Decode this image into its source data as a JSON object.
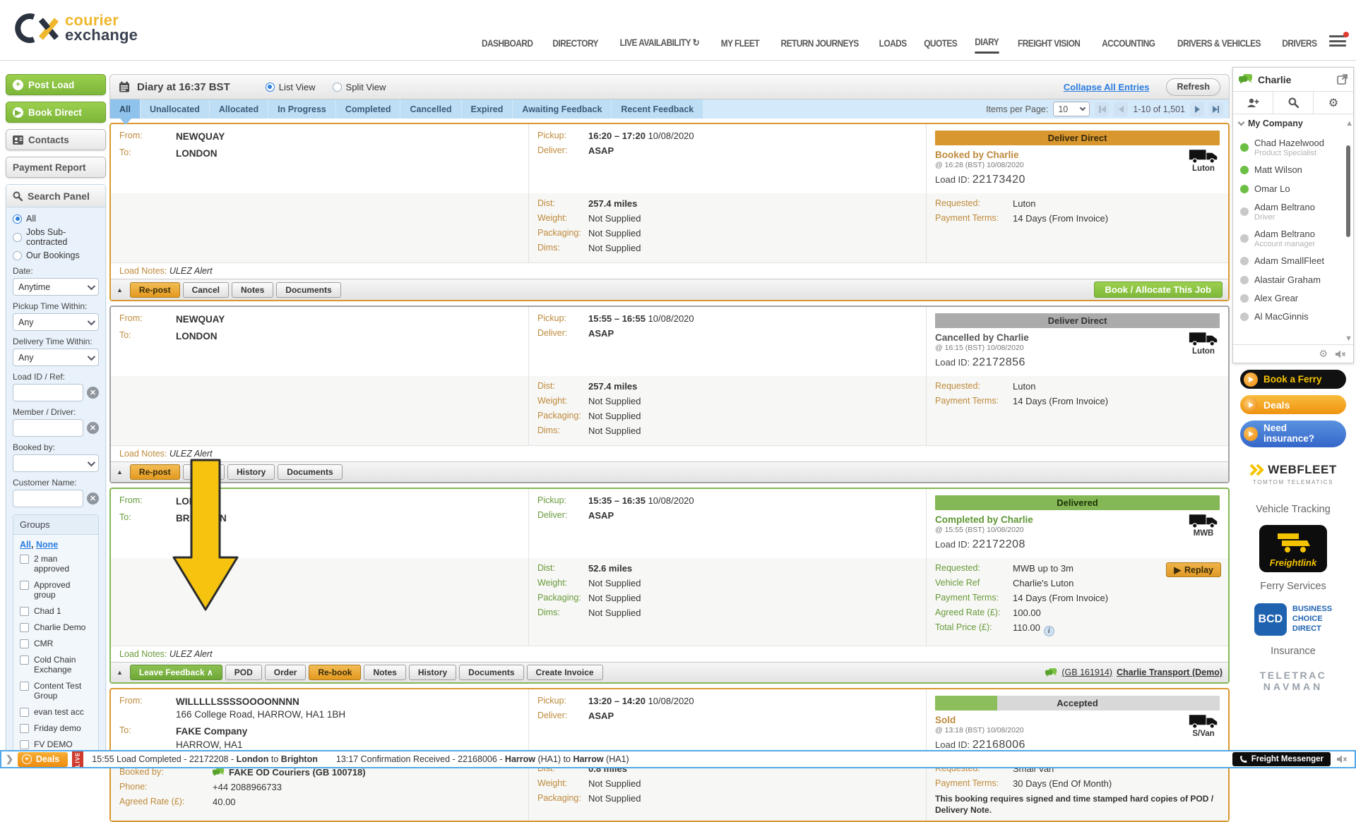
{
  "brand": {
    "courier": "courier",
    "exchange": "exchange"
  },
  "nav": {
    "items": [
      {
        "label": "DASHBOARD"
      },
      {
        "label": "DIRECTORY"
      },
      {
        "label": "LIVE AVAILABILITY",
        "refresh_icon": true
      },
      {
        "label": "MY FLEET"
      },
      {
        "label": "RETURN JOURNEYS"
      },
      {
        "label": "LOADS"
      },
      {
        "label": "QUOTES"
      },
      {
        "label": "DIARY",
        "active": true
      },
      {
        "label": "FREIGHT VISION"
      },
      {
        "label": "ACCOUNTING"
      },
      {
        "label": "DRIVERS & VEHICLES"
      },
      {
        "label": "DRIVERS"
      }
    ]
  },
  "sidebar": {
    "post_load": "Post Load",
    "book_direct": "Book Direct",
    "contacts": "Contacts",
    "payment_report": "Payment Report",
    "search": {
      "title": "Search Panel",
      "radios": [
        "All",
        "Jobs Sub-contracted",
        "Our Bookings"
      ],
      "selected_radio": "All",
      "fields": [
        {
          "label": "Date:",
          "type": "select",
          "value": "Anytime"
        },
        {
          "label": "Pickup Time Within:",
          "type": "select",
          "value": "Any"
        },
        {
          "label": "Delivery Time Within:",
          "type": "select",
          "value": "Any"
        },
        {
          "label": "Load ID / Ref:",
          "type": "text",
          "value": "",
          "clear": true
        },
        {
          "label": "Member / Driver:",
          "type": "text",
          "value": "",
          "clear": true
        },
        {
          "label": "Booked by:",
          "type": "select",
          "value": ""
        },
        {
          "label": "Customer Name:",
          "type": "text",
          "value": "",
          "clear": true
        }
      ],
      "groups": {
        "title": "Groups",
        "links": [
          "All",
          "None"
        ],
        "options": [
          "2 man approved",
          "Approved group",
          "Chad 1",
          "Charlie Demo",
          "CMR",
          "Cold Chain Exchange",
          "Content Test Group",
          "evan test acc",
          "Friday demo",
          "FV DEMO"
        ]
      }
    }
  },
  "diary": {
    "header": {
      "title": "Diary at 16:37 BST",
      "views": [
        "List View",
        "Split View"
      ],
      "selected_view": "List View",
      "collapse_link": "Collapse All Entries",
      "refresh": "Refresh"
    },
    "filters": {
      "active": "All",
      "tabs": [
        "All",
        "Unallocated",
        "Allocated",
        "In Progress",
        "Completed",
        "Cancelled",
        "Expired",
        "Awaiting Feedback",
        "Recent Feedback"
      ]
    },
    "pagination": {
      "label": "Items per Page:",
      "per_page": "10",
      "range": "1-10 of 1,501"
    },
    "labels": {
      "from": "From:",
      "to": "To:",
      "pickup": "Pickup:",
      "deliver": "Deliver:",
      "dist": "Dist:",
      "weight": "Weight:",
      "packaging": "Packaging:",
      "dims": "Dims:",
      "load_id": "Load ID:",
      "load_notes": "Load Notes:"
    },
    "cards": [
      {
        "border": "#d9982f",
        "label_color": "#be8a3c",
        "from": [
          "NEWQUAY"
        ],
        "to": [
          "LONDON"
        ],
        "pickup_time": "16:20 – 17:20",
        "pickup_date": "10/08/2020",
        "deliver": "ASAP",
        "dist": "257.4 miles",
        "weight": "Not Supplied",
        "packaging": "Not Supplied",
        "dims": "Not Supplied",
        "banner": {
          "text": "Deliver Direct",
          "bg": "#d9982f",
          "fg": "#35280a"
        },
        "status": {
          "text": "Booked by Charlie",
          "color": "#be8a3c"
        },
        "status_time": "@ 16:28 (BST) 10/08/2020",
        "load_id": "22173420",
        "vehicle": "Luton",
        "details": [
          {
            "label": "Requested:",
            "value": "Luton"
          },
          {
            "label": "Payment Terms:",
            "value": "14 Days (From Invoice)"
          }
        ],
        "load_notes": "ULEZ Alert",
        "tabs": [
          {
            "label": "Re-post",
            "style": "orange"
          },
          {
            "label": "Cancel"
          },
          {
            "label": "Notes"
          },
          {
            "label": "Documents"
          }
        ],
        "action_button": "Book / Allocate This Job"
      },
      {
        "border": "#a3a3a3",
        "label_color": "#be8a3c",
        "from": [
          "NEWQUAY"
        ],
        "to": [
          "LONDON"
        ],
        "pickup_time": "15:55 – 16:55",
        "pickup_date": "10/08/2020",
        "deliver": "ASAP",
        "dist": "257.4 miles",
        "weight": "Not Supplied",
        "packaging": "Not Supplied",
        "dims": "Not Supplied",
        "banner": {
          "text": "Deliver Direct",
          "bg": "#ababab",
          "fg": "#333333"
        },
        "status": {
          "text": "Cancelled by Charlie",
          "color": "#555555"
        },
        "status_time": "@ 16:15 (BST) 10/08/2020",
        "load_id": "22172856",
        "vehicle": "Luton",
        "details": [
          {
            "label": "Requested:",
            "value": "Luton"
          },
          {
            "label": "Payment Terms:",
            "value": "14 Days (From Invoice)"
          }
        ],
        "load_notes": "ULEZ Alert",
        "tabs": [
          {
            "label": "Re-post",
            "style": "orange"
          },
          {
            "label": "Notes"
          },
          {
            "label": "History"
          },
          {
            "label": "Documents"
          }
        ]
      },
      {
        "border": "#84b755",
        "label_color": "#679a39",
        "from": [
          "LONDON"
        ],
        "to": [
          "BRIGHTON"
        ],
        "pickup_time": "15:35 – 16:35",
        "pickup_date": "10/08/2020",
        "deliver": "ASAP",
        "dist": "52.6 miles",
        "weight": "Not Supplied",
        "packaging": "Not Supplied",
        "dims": "Not Supplied",
        "banner": {
          "text": "Delivered",
          "bg": "#84b755",
          "fg": "#1d3309"
        },
        "status": {
          "text": "Completed by Charlie",
          "color": "#5e9732"
        },
        "status_time": "@ 15:55 (BST) 10/08/2020",
        "load_id": "22172208",
        "vehicle": "MWB",
        "details": [
          {
            "label": "Requested:",
            "value": "MWB up to 3m"
          },
          {
            "label": "Vehicle Ref",
            "value": "Charlie's Luton"
          },
          {
            "label": "Payment Terms:",
            "value": "14 Days (From Invoice)"
          },
          {
            "label": "Agreed Rate (£):",
            "value": "100.00"
          },
          {
            "label": "Total Price (£):",
            "value": "110.00",
            "info": true
          }
        ],
        "replay": "Replay",
        "load_notes": "ULEZ Alert",
        "tabs": [
          {
            "label": "Leave Feedback ∧",
            "style": "green"
          },
          {
            "label": "POD"
          },
          {
            "label": "Order"
          },
          {
            "label": "Re-book",
            "style": "orange"
          },
          {
            "label": "Notes"
          },
          {
            "label": "History"
          },
          {
            "label": "Documents"
          },
          {
            "label": "Create Invoice"
          }
        ],
        "member_link": {
          "id": "(GB 161914)",
          "name": "Charlie Transport (Demo)"
        }
      },
      {
        "border": "#d9982f",
        "label_color": "#be8a3c",
        "from": [
          "WILLLLLSSSSOOOONNNN",
          "166 College Road, HARROW, HA1 1BH"
        ],
        "to": [
          "FAKE Company",
          "HARROW, HA1"
        ],
        "booked_rows": [
          {
            "label": "Booked by:",
            "value": "FAKE OD Couriers (GB 100718)",
            "chat_icon": true,
            "bold": true
          },
          {
            "label": "Phone:",
            "value": "+44 2088966733"
          },
          {
            "label": "Agreed Rate (£):",
            "value": "40.00"
          }
        ],
        "pickup_time": "13:20 – 14:20",
        "pickup_date": "10/08/2020",
        "deliver": "ASAP",
        "dist": "0.8 miles",
        "weight": "Not Supplied",
        "packaging": "Not Supplied",
        "banner": {
          "text": "Accepted",
          "bg": "split",
          "fg": "#333333",
          "split_left": "#8cbe5b",
          "split_right": "#d8d8d8"
        },
        "status": {
          "text": "Sold",
          "color": "#be8a3c"
        },
        "status_time": "@ 13:18 (BST) 10/08/2020",
        "load_id": "22168006",
        "vehicle": "S/Van",
        "details": [
          {
            "label": "Requested:",
            "value": "Small Van"
          },
          {
            "label": "Payment Terms:",
            "value": "30 Days (End Of Month)"
          }
        ],
        "note": "This booking requires signed and time stamped hard copies of POD / Delivery Note."
      }
    ]
  },
  "chat": {
    "title": "Charlie",
    "section": "My Company",
    "contacts": [
      {
        "name": "Chad Hazelwood",
        "role": "Product Specialist",
        "online": true
      },
      {
        "name": "Matt Wilson",
        "online": true
      },
      {
        "name": "Omar Lo",
        "online": true
      },
      {
        "name": "Adam Beltrano",
        "role": "Driver",
        "online": false
      },
      {
        "name": "Adam Beltrano",
        "role": "Account manager",
        "online": false
      },
      {
        "name": "Adam SmallFleet",
        "online": false
      },
      {
        "name": "Alastair Graham",
        "online": false
      },
      {
        "name": "Alex Grear",
        "online": false
      },
      {
        "name": "Al MacGinnis",
        "online": false
      }
    ]
  },
  "ads": {
    "book_ferry": "Book a Ferry",
    "deals": "Deals",
    "insurance_pill": "Need insurance?",
    "webfleet": {
      "name": "WEBFLEET",
      "sub": "TOMTOM TELEMATICS"
    },
    "vehicle_tracking": "Vehicle Tracking",
    "freightlink": "Freightlink",
    "ferry_services": "Ferry Services",
    "bcd": {
      "abbr": "BCD",
      "line1": "BUSINESS",
      "line2": "CHOICE",
      "line3": "DIRECT"
    },
    "insurance_label": "Insurance",
    "teletrac": {
      "line1": "TELETRAC",
      "line2": "NAVMAN"
    }
  },
  "ticker": {
    "deals": "Deals",
    "live": "LIVE",
    "messenger": "Freight Messenger",
    "items": [
      {
        "parts": [
          {
            "t": "15:55 Load Completed - 22172208 - "
          },
          {
            "t": "London",
            "b": true
          },
          {
            "t": " to "
          },
          {
            "t": "Brighton",
            "b": true
          }
        ]
      },
      {
        "parts": [
          {
            "t": "13:17 Confirmation Received - 22168006 - "
          },
          {
            "t": "Harrow",
            "b": true
          },
          {
            "t": " (HA1) to "
          },
          {
            "t": "Harrow",
            "b": true
          },
          {
            "t": " (HA1)"
          }
        ]
      }
    ]
  }
}
